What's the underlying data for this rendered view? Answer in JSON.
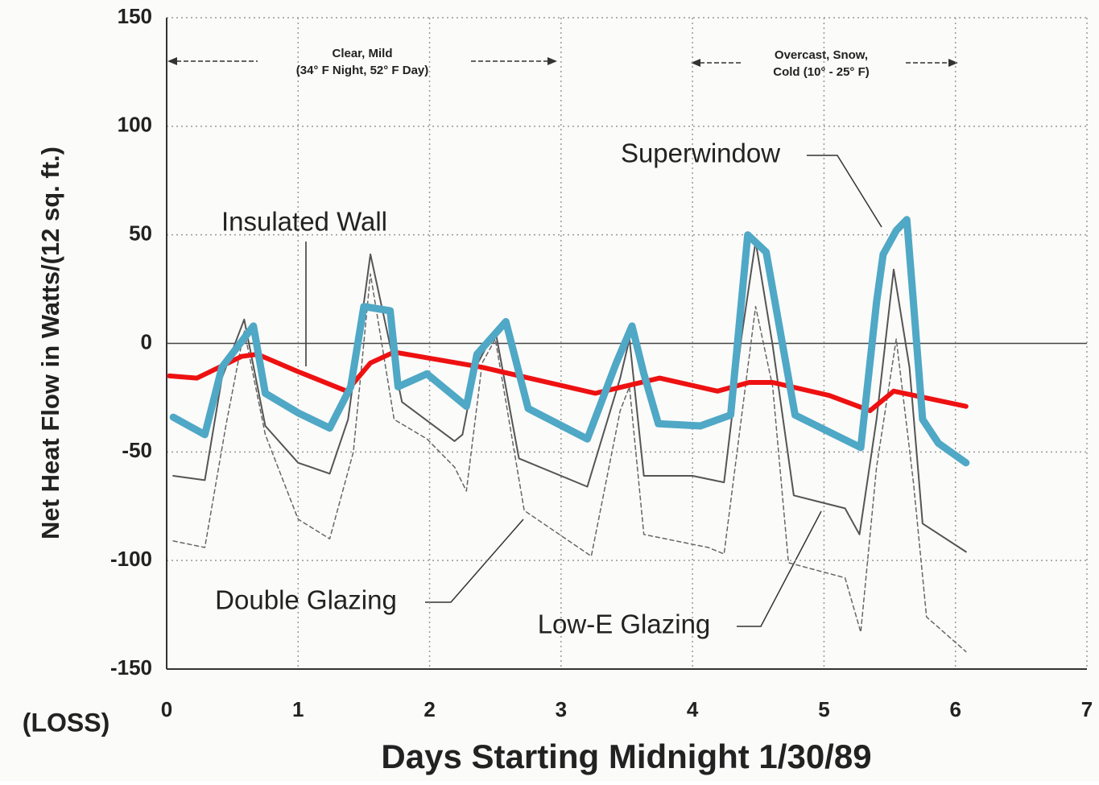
{
  "chart_data": {
    "type": "line",
    "x_label": "Days Starting Midnight  1/30/89",
    "y_label": "Net Heat Flow in Watts/(12 sq. ft.)",
    "annotations": [
      "Clear, Mild",
      "(34° F Night, 52° F Day)",
      "Overcast, Snow,",
      "Cold (10° - 25° F)",
      "(LOSS)"
    ],
    "xlim": [
      0,
      7
    ],
    "xticks": [
      0,
      1,
      2,
      3,
      4,
      5,
      6,
      7
    ],
    "ylim": [
      -150,
      150
    ],
    "yticks": [
      -150,
      -100,
      -50,
      0,
      50,
      100,
      150
    ],
    "grid": true,
    "series": [
      {
        "name": "Double Glazing",
        "color": "#666666",
        "style": "dashed",
        "width": 1.5,
        "x": [
          0.05,
          0.29,
          0.45,
          0.59,
          0.75,
          1.0,
          1.24,
          1.42,
          1.55,
          1.73,
          1.98,
          2.19,
          2.28,
          2.4,
          2.5,
          2.72,
          3.23,
          3.45,
          3.52,
          3.63,
          4.12,
          4.24,
          4.37,
          4.48,
          4.61,
          4.73,
          5.16,
          5.28,
          5.4,
          5.55,
          5.68,
          5.78,
          6.08
        ],
        "values": [
          -91,
          -94,
          -38,
          6,
          -42,
          -81,
          -90,
          -50,
          32,
          -35,
          -44,
          -57,
          -68,
          -9,
          2,
          -77,
          -98,
          -31,
          -20,
          -88,
          -94,
          -97,
          -35,
          17,
          -20,
          -101,
          -108,
          -133,
          -57,
          2,
          -64,
          -126,
          -142
        ]
      },
      {
        "name": "Low-E Glazing",
        "color": "#555555",
        "style": "solid",
        "width": 2,
        "x": [
          0.05,
          0.29,
          0.42,
          0.59,
          0.75,
          1.0,
          1.24,
          1.38,
          1.55,
          1.7,
          1.79,
          2.19,
          2.25,
          2.35,
          2.5,
          2.68,
          3.2,
          3.45,
          3.52,
          3.63,
          4.0,
          4.24,
          4.37,
          4.48,
          4.61,
          4.77,
          5.16,
          5.27,
          5.4,
          5.53,
          5.65,
          5.75,
          6.08
        ],
        "values": [
          -61,
          -63,
          -16,
          11,
          -38,
          -55,
          -60,
          -35,
          41,
          -1,
          -27,
          -45,
          -42,
          -11,
          6,
          -53,
          -66,
          -16,
          2,
          -61,
          -61,
          -64,
          2,
          47,
          -1,
          -70,
          -76,
          -88,
          -35,
          34,
          -11,
          -83,
          -96
        ]
      },
      {
        "name": "Insulated Wall",
        "color": "#ee1111",
        "style": "solid",
        "width": 6,
        "x": [
          0.02,
          0.23,
          0.57,
          0.69,
          1.0,
          1.37,
          1.55,
          1.73,
          2.4,
          3.26,
          3.75,
          4.19,
          4.43,
          4.61,
          5.04,
          5.35,
          5.53,
          6.08
        ],
        "values": [
          -15,
          -16,
          -6,
          -5,
          -13,
          -22,
          -9,
          -4,
          -11,
          -23,
          -16,
          -22,
          -18,
          -18,
          -24,
          -31,
          -22,
          -29
        ]
      },
      {
        "name": "Superwindow",
        "color": "#4fa8c5",
        "style": "solid",
        "width": 9,
        "x": [
          0.05,
          0.29,
          0.42,
          0.66,
          0.75,
          1.0,
          1.24,
          1.4,
          1.5,
          1.7,
          1.76,
          1.98,
          2.28,
          2.36,
          2.58,
          2.75,
          3.2,
          3.42,
          3.54,
          3.63,
          3.74,
          4.06,
          4.29,
          4.42,
          4.56,
          4.78,
          5.28,
          5.4,
          5.45,
          5.55,
          5.63,
          5.68,
          5.75,
          5.87,
          6.08
        ],
        "values": [
          -34,
          -42,
          -11,
          8,
          -23,
          -32,
          -39,
          -20,
          17,
          15,
          -20,
          -14,
          -29,
          -5,
          10,
          -30,
          -44,
          -9,
          8,
          -14,
          -37,
          -38,
          -33,
          50,
          42,
          -33,
          -48,
          19,
          41,
          52,
          57,
          19,
          -35,
          -46,
          -55
        ]
      }
    ]
  }
}
